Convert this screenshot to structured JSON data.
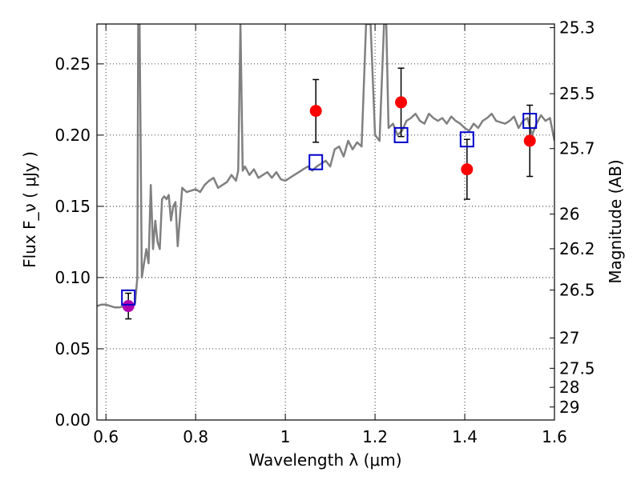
{
  "chart_data": {
    "type": "scatter",
    "xlabel": "Wavelength  λ (μm)",
    "ylabel": "Flux  F_ν ( μJy )",
    "y2label": "Magnitude (AB)",
    "xlim": [
      0.58,
      1.6
    ],
    "ylim": [
      0.0,
      0.278
    ],
    "xticks": [
      "0.6",
      "0.8",
      "1",
      "1.2",
      "1.4",
      "1.6"
    ],
    "yticks": [
      "0.00",
      "0.05",
      "0.10",
      "0.15",
      "0.20",
      "0.25"
    ],
    "y2ticks": [
      "25.3",
      "25.5",
      "25.7",
      "26",
      "26.2",
      "26.5",
      "27",
      "27.5",
      "28",
      "29"
    ],
    "grid": true,
    "colors": {
      "spectrum": "#808080",
      "photometry": "#ff0000",
      "photometry_purple": "#b000b0",
      "model_boxes": "#0000cc",
      "errorbars": "#000000"
    },
    "series": [
      {
        "kind": "line",
        "x": [
          0.58,
          0.59,
          0.6,
          0.61,
          0.62,
          0.63,
          0.64,
          0.65,
          0.66,
          0.665,
          0.67,
          0.672,
          0.675,
          0.68,
          0.685,
          0.69,
          0.695,
          0.7,
          0.705,
          0.71,
          0.715,
          0.72,
          0.725,
          0.73,
          0.735,
          0.74,
          0.745,
          0.75,
          0.755,
          0.76,
          0.77,
          0.78,
          0.79,
          0.8,
          0.81,
          0.82,
          0.83,
          0.84,
          0.85,
          0.86,
          0.87,
          0.88,
          0.89,
          0.895,
          0.9,
          0.905,
          0.91,
          0.92,
          0.93,
          0.94,
          0.95,
          0.96,
          0.97,
          0.98,
          0.99,
          1.0,
          1.01,
          1.02,
          1.03,
          1.04,
          1.05,
          1.06,
          1.07,
          1.08,
          1.09,
          1.1,
          1.11,
          1.12,
          1.13,
          1.14,
          1.15,
          1.16,
          1.17,
          1.18,
          1.19,
          1.2,
          1.21,
          1.22,
          1.225,
          1.23,
          1.24,
          1.25,
          1.26,
          1.27,
          1.28,
          1.29,
          1.3,
          1.31,
          1.32,
          1.33,
          1.34,
          1.35,
          1.36,
          1.37,
          1.38,
          1.39,
          1.4,
          1.41,
          1.42,
          1.43,
          1.44,
          1.45,
          1.46,
          1.47,
          1.48,
          1.49,
          1.5,
          1.51,
          1.52,
          1.53,
          1.54,
          1.55,
          1.56,
          1.57,
          1.58,
          1.59,
          1.6
        ],
        "y": [
          0.08,
          0.081,
          0.081,
          0.08,
          0.079,
          0.079,
          0.08,
          0.08,
          0.081,
          0.082,
          0.1,
          0.278,
          0.278,
          0.1,
          0.11,
          0.12,
          0.11,
          0.165,
          0.12,
          0.14,
          0.125,
          0.12,
          0.155,
          0.157,
          0.155,
          0.158,
          0.14,
          0.15,
          0.153,
          0.122,
          0.163,
          0.16,
          0.161,
          0.162,
          0.16,
          0.165,
          0.168,
          0.17,
          0.163,
          0.165,
          0.167,
          0.172,
          0.168,
          0.175,
          0.278,
          0.175,
          0.178,
          0.172,
          0.176,
          0.17,
          0.172,
          0.174,
          0.17,
          0.174,
          0.169,
          0.168,
          0.17,
          0.172,
          0.174,
          0.176,
          0.178,
          0.175,
          0.178,
          0.18,
          0.182,
          0.178,
          0.19,
          0.192,
          0.185,
          0.196,
          0.19,
          0.195,
          0.192,
          0.278,
          0.278,
          0.2,
          0.196,
          0.278,
          0.278,
          0.205,
          0.208,
          0.2,
          0.203,
          0.21,
          0.212,
          0.215,
          0.21,
          0.208,
          0.215,
          0.212,
          0.21,
          0.212,
          0.208,
          0.213,
          0.21,
          0.208,
          0.205,
          0.203,
          0.208,
          0.205,
          0.21,
          0.212,
          0.215,
          0.21,
          0.209,
          0.208,
          0.21,
          0.213,
          0.205,
          0.21,
          0.212,
          0.2,
          0.208,
          0.214,
          0.21,
          0.212,
          0.196
        ]
      },
      {
        "kind": "points",
        "color": "red",
        "x": [
          1.068,
          1.258,
          1.405,
          1.545
        ],
        "y": [
          0.217,
          0.223,
          0.176,
          0.196
        ],
        "yerr": [
          0.022,
          0.024,
          0.021,
          0.025
        ]
      },
      {
        "kind": "points",
        "color": "purple",
        "x": [
          0.65
        ],
        "y": [
          0.08
        ],
        "yerr": [
          0.009
        ]
      },
      {
        "kind": "boxes",
        "color": "blue",
        "x": [
          0.65,
          1.068,
          1.258,
          1.405,
          1.545
        ],
        "y": [
          0.086,
          0.181,
          0.2,
          0.197,
          0.21
        ]
      }
    ]
  }
}
